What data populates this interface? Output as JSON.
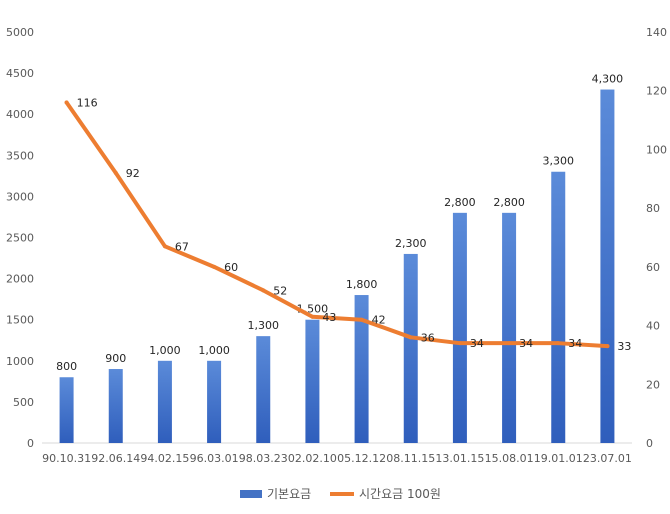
{
  "chart_data": {
    "type": "bar+line",
    "title": "",
    "categories": [
      "90.10.31",
      "92.06.14",
      "94.02.15",
      "96.03.01",
      "98.03.23",
      "02.02.10",
      "05.12.12",
      "08.11.15",
      "13.01.15",
      "15.08.01",
      "19.01.01",
      "23.07.01"
    ],
    "series": [
      {
        "name": "기본요금",
        "type": "bar",
        "axis": "left",
        "color": "#4472C4",
        "values": [
          800,
          900,
          1000,
          1000,
          1300,
          1500,
          1800,
          2300,
          2800,
          2800,
          3300,
          4300
        ],
        "labels": [
          "800",
          "900",
          "1,000",
          "1,000",
          "1,300",
          "1,500",
          "1,800",
          "2,300",
          "2,800",
          "2,800",
          "3,300",
          "4,300"
        ]
      },
      {
        "name": "시간요금 100원",
        "type": "line",
        "axis": "right",
        "color": "#ED7D31",
        "values": [
          116,
          92,
          67,
          60,
          52,
          43,
          42,
          36,
          34,
          34,
          34,
          33
        ],
        "labels": [
          "116",
          "92",
          "67",
          "60",
          "52",
          "43",
          "42",
          "36",
          "34",
          "34",
          "34",
          "33"
        ]
      }
    ],
    "y_left": {
      "ylim": [
        0,
        5000
      ],
      "ticks": [
        "0",
        "500",
        "1000",
        "1500",
        "2000",
        "2500",
        "3000",
        "3500",
        "4000",
        "4500",
        "5000"
      ]
    },
    "y_right": {
      "ylim": [
        0,
        140
      ],
      "ticks": [
        "0",
        "20",
        "40",
        "60",
        "80",
        "100",
        "120",
        "140"
      ]
    },
    "grid": false,
    "legend": "bottom"
  }
}
